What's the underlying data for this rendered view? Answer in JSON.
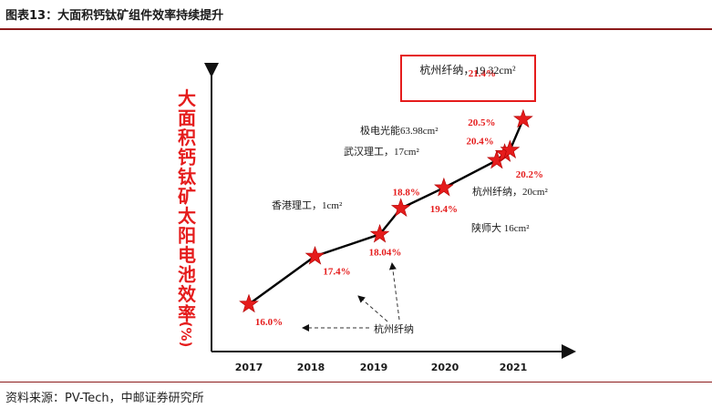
{
  "figure_title": "图表13：大面积钙钛矿组件效率持续提升",
  "source": "资料来源：PV-Tech，中邮证券研究所",
  "colors": {
    "accent": "#e51c1c",
    "axis": "#111111",
    "rule": "#8b1a1a",
    "label": "#1a1a1a"
  },
  "chart_data": {
    "type": "line",
    "title": "",
    "ylabel_chars": [
      "大",
      "面",
      "积",
      "钙",
      "钛",
      "矿",
      "太",
      "阳",
      "电",
      "池",
      "效",
      "率",
      "(%)"
    ],
    "xlabel": "",
    "x_ticks": [
      "2017",
      "2018",
      "2019",
      "2020",
      "2021"
    ],
    "grid": false,
    "legend": "none",
    "points": [
      {
        "year": 2017.0,
        "value": 16.0,
        "label": "16.0%"
      },
      {
        "year": 2018.0,
        "value": 17.4,
        "label": "17.4%"
      },
      {
        "year": 2018.98,
        "value": 18.04,
        "label": "18.04%"
      },
      {
        "year": 2019.3,
        "value": 18.8,
        "label": "18.8%"
      },
      {
        "year": 2019.95,
        "value": 19.4,
        "label": "19.4%"
      },
      {
        "year": 2020.75,
        "value": 20.2,
        "label": "20.2%"
      },
      {
        "year": 2020.87,
        "value": 20.4,
        "label": "20.4%"
      },
      {
        "year": 2020.95,
        "value": 20.5,
        "label": "20.5%"
      },
      {
        "year": 2021.15,
        "value": 21.4,
        "label": "21.4%"
      }
    ],
    "annotations": {
      "hk_poly": "香港理工，1cm²",
      "snnu": "陕师大 16cm²",
      "whut": "武汉理工，17cm²",
      "hz_20": "杭州纤纳，20cm²",
      "jidian": "极电光能63.98cm²",
      "hz_latest": "杭州纤纳，19.32cm²",
      "hz_arrow": "杭州纤纳"
    }
  }
}
